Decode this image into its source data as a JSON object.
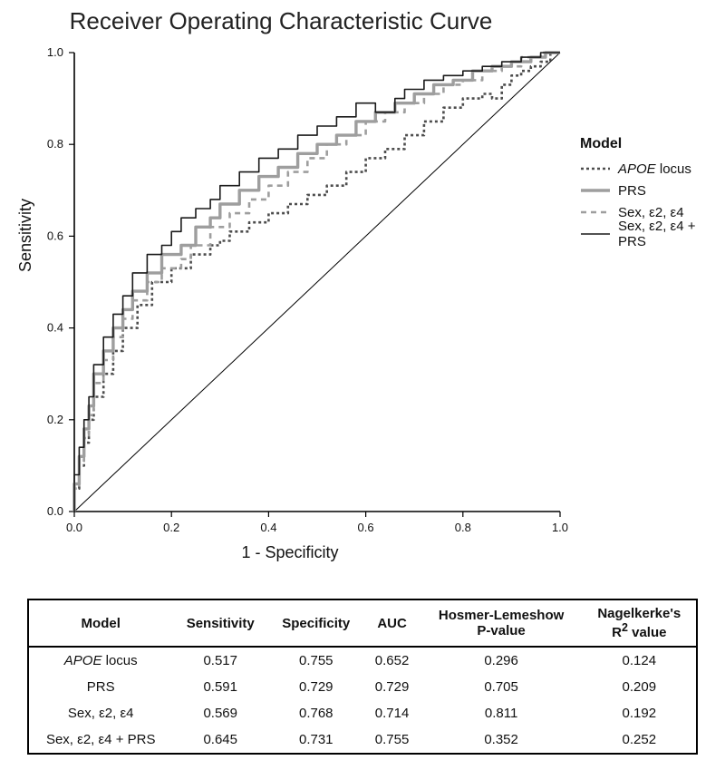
{
  "chart": {
    "type": "roc",
    "title": "Receiver Operating Characteristic Curve",
    "title_fontsize": 26,
    "xlabel": "1 - Specificity",
    "ylabel": "Sensitivity",
    "label_fontsize": 18,
    "tick_fontsize": 13,
    "background_color": "#ffffff",
    "axis_color": "#000000",
    "xlim": [
      0,
      1
    ],
    "ylim": [
      0,
      1
    ],
    "xticks": [
      0.0,
      0.2,
      0.4,
      0.6,
      0.8,
      1.0
    ],
    "yticks": [
      0.0,
      0.2,
      0.4,
      0.6,
      0.8,
      1.0
    ],
    "diagonal": {
      "color": "#000000",
      "width": 1.0,
      "dash": "none"
    },
    "legend": {
      "title": "Model",
      "position": "right",
      "fontsize": 15
    },
    "series": [
      {
        "name": "APOE locus",
        "label_html": "<i>APOE</i> locus",
        "color": "#4d4d4d",
        "width": 2.6,
        "dash": "3,3",
        "points": [
          [
            0.0,
            0.0
          ],
          [
            0.01,
            0.05
          ],
          [
            0.02,
            0.1
          ],
          [
            0.03,
            0.15
          ],
          [
            0.04,
            0.2
          ],
          [
            0.06,
            0.25
          ],
          [
            0.08,
            0.3
          ],
          [
            0.1,
            0.35
          ],
          [
            0.13,
            0.4
          ],
          [
            0.16,
            0.45
          ],
          [
            0.2,
            0.5
          ],
          [
            0.24,
            0.53
          ],
          [
            0.28,
            0.56
          ],
          [
            0.3,
            0.58
          ],
          [
            0.32,
            0.59
          ],
          [
            0.36,
            0.61
          ],
          [
            0.4,
            0.63
          ],
          [
            0.44,
            0.65
          ],
          [
            0.48,
            0.67
          ],
          [
            0.52,
            0.69
          ],
          [
            0.56,
            0.71
          ],
          [
            0.6,
            0.74
          ],
          [
            0.64,
            0.77
          ],
          [
            0.68,
            0.79
          ],
          [
            0.72,
            0.82
          ],
          [
            0.76,
            0.85
          ],
          [
            0.8,
            0.88
          ],
          [
            0.84,
            0.9
          ],
          [
            0.86,
            0.91
          ],
          [
            0.88,
            0.9
          ],
          [
            0.9,
            0.93
          ],
          [
            0.92,
            0.95
          ],
          [
            0.94,
            0.96
          ],
          [
            0.96,
            0.97
          ],
          [
            0.98,
            0.98
          ],
          [
            1.0,
            1.0
          ]
        ]
      },
      {
        "name": "PRS",
        "label_html": "PRS",
        "color": "#9e9e9e",
        "width": 3.4,
        "dash": "none",
        "points": [
          [
            0.0,
            0.0
          ],
          [
            0.01,
            0.06
          ],
          [
            0.02,
            0.12
          ],
          [
            0.03,
            0.18
          ],
          [
            0.04,
            0.23
          ],
          [
            0.06,
            0.3
          ],
          [
            0.08,
            0.35
          ],
          [
            0.1,
            0.4
          ],
          [
            0.12,
            0.44
          ],
          [
            0.15,
            0.48
          ],
          [
            0.18,
            0.52
          ],
          [
            0.22,
            0.56
          ],
          [
            0.25,
            0.58
          ],
          [
            0.28,
            0.62
          ],
          [
            0.3,
            0.64
          ],
          [
            0.34,
            0.67
          ],
          [
            0.38,
            0.7
          ],
          [
            0.42,
            0.73
          ],
          [
            0.46,
            0.75
          ],
          [
            0.5,
            0.78
          ],
          [
            0.54,
            0.8
          ],
          [
            0.58,
            0.82
          ],
          [
            0.62,
            0.85
          ],
          [
            0.66,
            0.87
          ],
          [
            0.7,
            0.89
          ],
          [
            0.74,
            0.91
          ],
          [
            0.78,
            0.93
          ],
          [
            0.82,
            0.94
          ],
          [
            0.86,
            0.96
          ],
          [
            0.9,
            0.97
          ],
          [
            0.94,
            0.98
          ],
          [
            0.97,
            0.99
          ],
          [
            1.0,
            1.0
          ]
        ]
      },
      {
        "name": "Sex, e2, e4",
        "label_html": "Sex, ε2, ε4",
        "color": "#9e9e9e",
        "width": 2.6,
        "dash": "6,5",
        "points": [
          [
            0.0,
            0.0
          ],
          [
            0.01,
            0.05
          ],
          [
            0.02,
            0.11
          ],
          [
            0.03,
            0.16
          ],
          [
            0.04,
            0.21
          ],
          [
            0.06,
            0.28
          ],
          [
            0.08,
            0.33
          ],
          [
            0.1,
            0.38
          ],
          [
            0.12,
            0.42
          ],
          [
            0.15,
            0.46
          ],
          [
            0.18,
            0.5
          ],
          [
            0.22,
            0.53
          ],
          [
            0.24,
            0.55
          ],
          [
            0.28,
            0.58
          ],
          [
            0.32,
            0.62
          ],
          [
            0.36,
            0.65
          ],
          [
            0.4,
            0.68
          ],
          [
            0.44,
            0.71
          ],
          [
            0.48,
            0.74
          ],
          [
            0.52,
            0.77
          ],
          [
            0.56,
            0.8
          ],
          [
            0.6,
            0.82
          ],
          [
            0.64,
            0.85
          ],
          [
            0.68,
            0.87
          ],
          [
            0.72,
            0.89
          ],
          [
            0.76,
            0.91
          ],
          [
            0.8,
            0.93
          ],
          [
            0.84,
            0.94
          ],
          [
            0.88,
            0.96
          ],
          [
            0.92,
            0.97
          ],
          [
            0.96,
            0.99
          ],
          [
            1.0,
            1.0
          ]
        ]
      },
      {
        "name": "Sex, e2, e4 + PRS",
        "label_html": "Sex, ε2, ε4 + PRS",
        "color": "#1a1a1a",
        "width": 1.6,
        "dash": "none",
        "points": [
          [
            0.0,
            0.0
          ],
          [
            0.01,
            0.08
          ],
          [
            0.02,
            0.14
          ],
          [
            0.03,
            0.2
          ],
          [
            0.04,
            0.25
          ],
          [
            0.06,
            0.32
          ],
          [
            0.08,
            0.38
          ],
          [
            0.1,
            0.43
          ],
          [
            0.12,
            0.47
          ],
          [
            0.15,
            0.52
          ],
          [
            0.18,
            0.56
          ],
          [
            0.2,
            0.58
          ],
          [
            0.22,
            0.61
          ],
          [
            0.25,
            0.64
          ],
          [
            0.28,
            0.66
          ],
          [
            0.3,
            0.68
          ],
          [
            0.34,
            0.71
          ],
          [
            0.38,
            0.74
          ],
          [
            0.42,
            0.77
          ],
          [
            0.46,
            0.79
          ],
          [
            0.5,
            0.82
          ],
          [
            0.54,
            0.84
          ],
          [
            0.58,
            0.86
          ],
          [
            0.62,
            0.89
          ],
          [
            0.66,
            0.87
          ],
          [
            0.68,
            0.9
          ],
          [
            0.72,
            0.92
          ],
          [
            0.76,
            0.94
          ],
          [
            0.8,
            0.95
          ],
          [
            0.84,
            0.96
          ],
          [
            0.88,
            0.97
          ],
          [
            0.92,
            0.98
          ],
          [
            0.96,
            0.99
          ],
          [
            1.0,
            1.0
          ]
        ]
      }
    ]
  },
  "table": {
    "columns": [
      "Model",
      "Sensitivity",
      "Specificity",
      "AUC",
      "Hosmer-Lemeshow P-value",
      "Nagelkerke's R² value"
    ],
    "header_html": {
      "4": "Hosmer-Lemeshow<br>P-value",
      "5": "Nagelkerke's<br>R<sup>2</sup> value"
    },
    "header_fontsize": 15,
    "body_fontsize": 15,
    "border_color": "#000000",
    "rows": [
      {
        "model_html": "<i>APOE</i> locus",
        "sensitivity": "0.517",
        "specificity": "0.755",
        "auc": "0.652",
        "hl": "0.296",
        "r2": "0.124"
      },
      {
        "model_html": "PRS",
        "sensitivity": "0.591",
        "specificity": "0.729",
        "auc": "0.729",
        "hl": "0.705",
        "r2": "0.209"
      },
      {
        "model_html": "Sex, ε2, ε4",
        "sensitivity": "0.569",
        "specificity": "0.768",
        "auc": "0.714",
        "hl": "0.811",
        "r2": "0.192"
      },
      {
        "model_html": "Sex, ε2, ε4 + PRS",
        "sensitivity": "0.645",
        "specificity": "0.731",
        "auc": "0.755",
        "hl": "0.352",
        "r2": "0.252"
      }
    ]
  }
}
